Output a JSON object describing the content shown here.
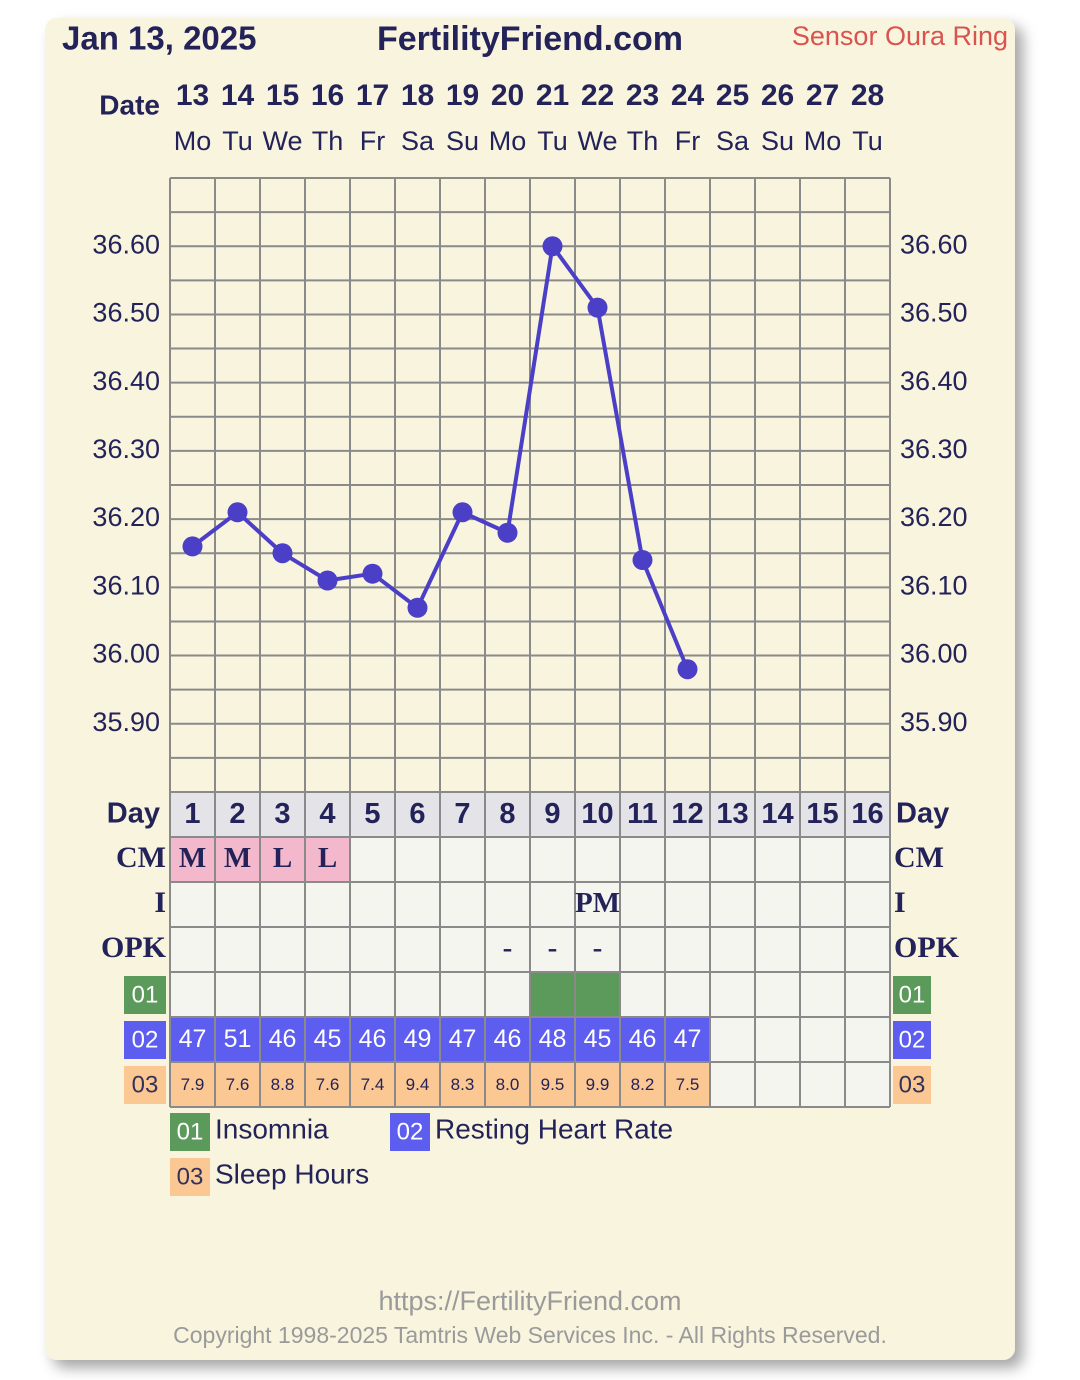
{
  "header": {
    "date": "Jan 13, 2025",
    "site": "FertilityFriend.com",
    "sensor": "Sensor Oura Ring"
  },
  "chart_data": {
    "type": "line",
    "date_label": "Date",
    "dates": [
      "13",
      "14",
      "15",
      "16",
      "17",
      "18",
      "19",
      "20",
      "21",
      "22",
      "23",
      "24",
      "25",
      "26",
      "27",
      "28"
    ],
    "weekdays": [
      "Mo",
      "Tu",
      "We",
      "Th",
      "Fr",
      "Sa",
      "Su",
      "Mo",
      "Tu",
      "We",
      "Th",
      "Fr",
      "Sa",
      "Su",
      "Mo",
      "Tu"
    ],
    "day_label": "Day",
    "days": [
      "1",
      "2",
      "3",
      "4",
      "5",
      "6",
      "7",
      "8",
      "9",
      "10",
      "11",
      "12",
      "13",
      "14",
      "15",
      "16"
    ],
    "values": [
      36.16,
      36.21,
      36.15,
      36.11,
      36.12,
      36.07,
      36.21,
      36.18,
      36.6,
      36.51,
      36.14,
      35.98,
      null,
      null,
      null,
      null
    ],
    "color": "#4a3fc6",
    "ylim": [
      35.8,
      36.7
    ],
    "yticks": [
      {
        "value": 35.9,
        "label": "35.90"
      },
      {
        "value": 36.0,
        "label": "36.00"
      },
      {
        "value": 36.1,
        "label": "36.10"
      },
      {
        "value": 36.2,
        "label": "36.20"
      },
      {
        "value": 36.3,
        "label": "36.30"
      },
      {
        "value": 36.4,
        "label": "36.40"
      },
      {
        "value": 36.5,
        "label": "36.50"
      },
      {
        "value": 36.6,
        "label": "36.60"
      }
    ],
    "ygridlines": [
      35.8,
      35.85,
      35.9,
      35.95,
      36.0,
      36.05,
      36.1,
      36.15,
      36.2,
      36.25,
      36.3,
      36.35,
      36.4,
      36.45,
      36.5,
      36.55,
      36.6,
      36.65,
      36.7
    ],
    "grid": true
  },
  "rows": {
    "cm": {
      "label": "CM",
      "color": "#f4b8cd",
      "values": [
        "M",
        "M",
        "L",
        "L",
        null,
        null,
        null,
        null,
        null,
        null,
        null,
        null,
        null,
        null,
        null,
        null
      ]
    },
    "i": {
      "label": "I",
      "values": [
        null,
        null,
        null,
        null,
        null,
        null,
        null,
        null,
        null,
        "PM",
        null,
        null,
        null,
        null,
        null,
        null
      ]
    },
    "opk": {
      "label": "OPK",
      "values": [
        null,
        null,
        null,
        null,
        null,
        null,
        null,
        "-",
        "-",
        "-",
        null,
        null,
        null,
        null,
        null,
        null
      ]
    },
    "insomnia": {
      "code": "01",
      "name": "Insomnia",
      "color": "#5b9a5b",
      "marked": [
        false,
        false,
        false,
        false,
        false,
        false,
        false,
        false,
        true,
        true,
        false,
        false,
        false,
        false,
        false,
        false
      ]
    },
    "rhr": {
      "code": "02",
      "name": "Resting Heart Rate",
      "color": "#5d5def",
      "values": [
        47,
        51,
        46,
        45,
        46,
        49,
        47,
        46,
        48,
        45,
        46,
        47,
        null,
        null,
        null,
        null
      ]
    },
    "sleep": {
      "code": "03",
      "name": "Sleep Hours",
      "color": "#fbc792",
      "values": [
        7.9,
        7.6,
        8.8,
        7.6,
        7.4,
        9.4,
        8.3,
        8.0,
        9.5,
        9.9,
        8.2,
        7.5,
        null,
        null,
        null,
        null
      ],
      "value_labels": [
        "7.9",
        "7.6",
        "8.8",
        "7.6",
        "7.4",
        "9.4",
        "8.3",
        "8.0",
        "9.5",
        "9.9",
        "8.2",
        "7.5",
        null,
        null,
        null,
        null
      ]
    }
  },
  "footer": {
    "url": "https://FertilityFriend.com",
    "copyright": "Copyright 1998-2025 Tamtris Web Services Inc. - All Rights Reserved."
  }
}
